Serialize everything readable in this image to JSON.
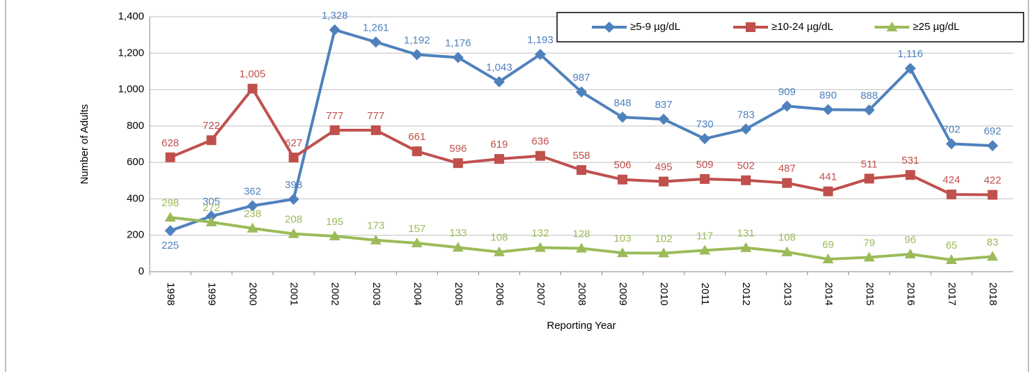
{
  "chart_data": {
    "type": "line",
    "y_label": "Number of Adults",
    "x_label": "Reporting Year",
    "categories": [
      "1998",
      "1999",
      "2000",
      "2001",
      "2002",
      "2003",
      "2004",
      "2005",
      "2006",
      "2007",
      "2008",
      "2009",
      "2010",
      "2011",
      "2012",
      "2013",
      "2014",
      "2015",
      "2016",
      "2017",
      "2018"
    ],
    "series": [
      {
        "name": "≥5-9 µg/dL",
        "color": "#4f81bd",
        "marker": "diamond",
        "values": [
          225,
          305,
          362,
          398,
          1328,
          1261,
          1192,
          1176,
          1043,
          1193,
          987,
          848,
          837,
          730,
          783,
          909,
          890,
          888,
          1116,
          702,
          692
        ],
        "value_labels": [
          "225",
          "305",
          "362",
          "398",
          "1,328",
          "1,261",
          "1,192",
          "1,176",
          "1,043",
          "1,193",
          "987",
          "848",
          "837",
          "730",
          "783",
          "909",
          "890",
          "888",
          "1,116",
          "702",
          "692"
        ]
      },
      {
        "name": "≥10-24 µg/dL",
        "color": "#c0504d",
        "marker": "square",
        "values": [
          628,
          722,
          1005,
          627,
          777,
          777,
          661,
          596,
          619,
          636,
          558,
          506,
          495,
          509,
          502,
          487,
          441,
          511,
          531,
          424,
          422
        ],
        "value_labels": [
          "628",
          "722",
          "1,005",
          "627",
          "777",
          "777",
          "661",
          "596",
          "619",
          "636",
          "558",
          "506",
          "495",
          "509",
          "502",
          "487",
          "441",
          "511",
          "531",
          "424",
          "422"
        ]
      },
      {
        "name": "≥25 µg/dL",
        "color": "#9bbb59",
        "marker": "triangle",
        "values": [
          298,
          272,
          238,
          208,
          195,
          173,
          157,
          133,
          108,
          132,
          128,
          103,
          102,
          117,
          131,
          108,
          69,
          79,
          96,
          65,
          83
        ]
      }
    ],
    "ylim": [
      0,
      1400
    ],
    "yticks": [
      0,
      200,
      400,
      600,
      800,
      {
        "value": 1000,
        "label": "1,000"
      },
      {
        "value": 1200,
        "label": "1,200"
      },
      {
        "value": 1400,
        "label": "1,400"
      }
    ],
    "grid": true,
    "legend": "top-right"
  }
}
